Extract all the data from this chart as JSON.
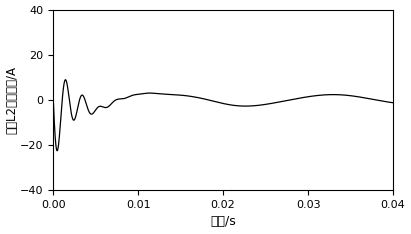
{
  "title": "",
  "xlabel": "时间/s",
  "ylabel": "线路L2零模电流/A",
  "xlim": [
    0,
    0.04
  ],
  "ylim": [
    -40,
    40
  ],
  "xticks": [
    0,
    0.01,
    0.02,
    0.03,
    0.04
  ],
  "yticks": [
    -40,
    -20,
    0,
    20,
    40
  ],
  "line_color": "#000000",
  "line_width": 0.9,
  "background_color": "#ffffff",
  "xlabel_fontsize": 9,
  "ylabel_fontsize": 8.5,
  "tick_fontsize": 8
}
